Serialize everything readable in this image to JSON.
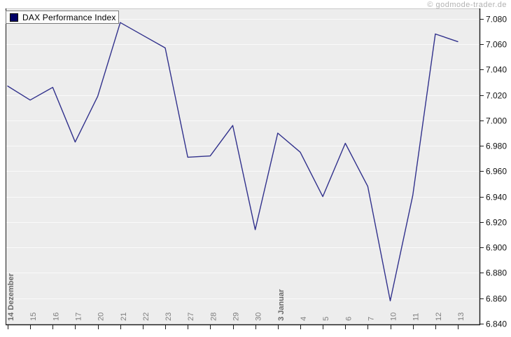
{
  "watermark": "© godmode-trader.de",
  "legend": {
    "label": "DAX Performance Index",
    "swatch_color": "#000066"
  },
  "colors": {
    "line": "#31318c",
    "plot_background": "#ededed",
    "gridline": "#fafafa",
    "axis": "#1a1a1a",
    "plot_top_border": "#c9c9c9",
    "x_tick_label": "#7e7e7e",
    "x_tick_label_bold": "#6b6b6b",
    "y_tick_label": "#111111",
    "watermark": "#b2b2b2"
  },
  "chart_data": {
    "type": "line",
    "title": "DAX Performance Index",
    "x_categories": [
      "14 Dezember",
      "15",
      "16",
      "17",
      "20",
      "21",
      "22",
      "23",
      "27",
      "28",
      "29",
      "30",
      "3 Januar",
      "4",
      "5",
      "6",
      "7",
      "10",
      "11",
      "12",
      "13"
    ],
    "bold_category_indices": [
      0,
      12
    ],
    "values": [
      7027,
      7016,
      7026,
      6983,
      7019,
      7077,
      7067,
      7057,
      6971,
      6972,
      6996,
      6914,
      6990,
      6975,
      6940,
      6982,
      6948,
      6858,
      6941,
      7068,
      7062
    ],
    "ylim": [
      6840,
      7080
    ],
    "y_tick_step": 20,
    "y_tick_labels_top_to_bottom": [
      "7.080",
      "7.060",
      "7.040",
      "7.020",
      "7.000",
      "6.980",
      "6.960",
      "6.940",
      "6.920",
      "6.900",
      "6.880",
      "6.860",
      "6.840"
    ],
    "grid": true,
    "legend_position": "top-left",
    "y_axis_side": "right",
    "x_label_rotation_deg": -90
  }
}
